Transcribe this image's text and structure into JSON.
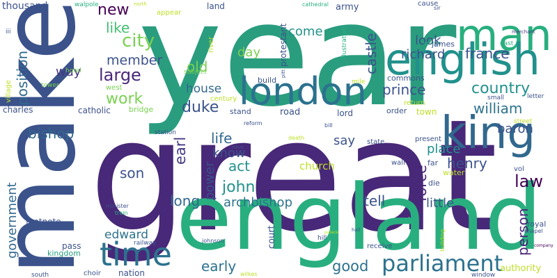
{
  "words": [
    "year",
    "great",
    "make",
    "england",
    "man",
    "english",
    "king",
    "london",
    "time",
    "parliament",
    "city",
    "like",
    "new",
    "member",
    "large",
    "way",
    "work",
    "bishop",
    "position",
    "village",
    "thousand",
    "walpole",
    "iii",
    "duke",
    "house",
    "old",
    "life",
    "know",
    "act",
    "power",
    "earl",
    "john",
    "archbishop",
    "son",
    "long",
    "early",
    "edward",
    "nation",
    "railway",
    "minister",
    "train",
    "court",
    "johnson",
    "good",
    "tell",
    "little",
    "force",
    "place",
    "say",
    "henry",
    "law",
    "baron",
    "william",
    "country",
    "france",
    "richard",
    "look",
    "castle",
    "prince",
    "come",
    "day",
    "person",
    "government",
    "footnote",
    "pass",
    "kingdom",
    "charles",
    "catholic",
    "bridge",
    "west",
    "hotel",
    "tower",
    "protestant",
    "land",
    "army",
    "cathedral",
    "appear",
    "north",
    "river",
    "subject",
    "illustration",
    "mile",
    "commons",
    "cause",
    "sir",
    "george",
    "james",
    "east",
    "merchant",
    "build",
    "century",
    "stand",
    "road",
    "lord",
    "order",
    "town",
    "return",
    "small",
    "letter",
    "street",
    "bill",
    "reform",
    "state",
    "present",
    "nave",
    "wall",
    "far",
    "church",
    "water",
    "vol",
    "die",
    "station",
    "death",
    "chapel",
    "royal",
    "receive",
    "hill",
    "hall",
    "building",
    "window",
    "authority",
    "wilkes",
    "choir",
    "south",
    "company",
    "palace",
    "pitt"
  ]
}
